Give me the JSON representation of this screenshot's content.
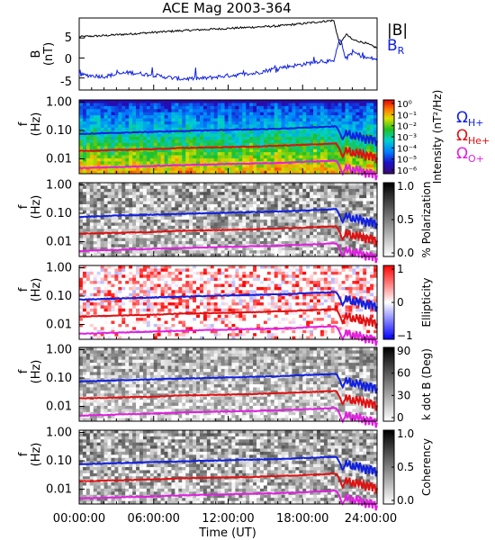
{
  "title": "ACE Mag 2003-364",
  "x_axis": {
    "label": "Time (UT)",
    "ticks": [
      "00:00:00",
      "06:00:00",
      "12:00:00",
      "18:00:00",
      "24:00:00"
    ],
    "range_hours": [
      0,
      24
    ]
  },
  "colors": {
    "H": "#1020e0",
    "He": "#e01010",
    "O": "#e020e0",
    "Btotal": "#000000",
    "BR": "#1020e0"
  },
  "top_panel": {
    "ylabel": "B",
    "yunit": "(nT)",
    "yticks": [
      "5",
      "0",
      "-5"
    ],
    "legend_total": "|B|",
    "legend_r_main": "B",
    "legend_r_sub": "R"
  },
  "panels": [
    {
      "id": "intensity",
      "ylabel": "f",
      "yunit": "(Hz)",
      "colormap": "rainbow",
      "cbar_ticks": [
        "10⁰",
        "10⁻¹",
        "10⁻²",
        "10⁻³",
        "10⁻⁴",
        "10⁻⁵",
        "10⁻⁶"
      ],
      "cbar_label": "Intensity (nT²/Hz)"
    },
    {
      "id": "polarization",
      "ylabel": "f",
      "yunit": "(Hz)",
      "colormap": "gray",
      "cbar_ticks": [
        "1.0",
        "0.5",
        "0.0"
      ],
      "cbar_label": "% Polarization"
    },
    {
      "id": "ellipticity",
      "ylabel": "f",
      "yunit": "(Hz)",
      "colormap": "bluered",
      "cbar_ticks": [
        "1",
        "0",
        "−1"
      ],
      "cbar_label": "Ellipticity"
    },
    {
      "id": "kdotb",
      "ylabel": "f",
      "yunit": "(Hz)",
      "colormap": "gray",
      "cbar_ticks": [
        "90",
        "60",
        "30",
        "0"
      ],
      "cbar_label": "k dot B (Deg)"
    },
    {
      "id": "coherency",
      "ylabel": "f",
      "yunit": "(Hz)",
      "colormap": "gray",
      "cbar_ticks": [
        "1.0",
        "0.5",
        "0.0"
      ],
      "cbar_label": "Coherency"
    }
  ],
  "freq_ticks": [
    "1.00",
    "0.10",
    "0.01"
  ],
  "gyro_legend": {
    "symbol": "Ω",
    "H": "H+",
    "He": "He+",
    "O": "O+"
  },
  "chart_data": [
    {
      "type": "line",
      "title": "ACE Mag 2003-364",
      "xlabel": "Time (UT)",
      "ylabel": "B (nT)",
      "ylim": [
        -8,
        10
      ],
      "x": [
        0,
        2,
        4,
        6,
        8,
        10,
        12,
        14,
        16,
        18,
        19.5,
        20.5,
        21,
        21.5,
        22,
        23,
        24
      ],
      "series": [
        {
          "name": "|B|",
          "values": [
            5.3,
            5.6,
            6.0,
            6.4,
            6.8,
            7.1,
            7.4,
            7.7,
            8.0,
            8.6,
            9.1,
            9.4,
            3.2,
            6.0,
            4.6,
            3.8,
            2.5
          ]
        },
        {
          "name": "B_R",
          "values": [
            -4.2,
            -4.6,
            -3.6,
            -4.3,
            -5.2,
            -5.1,
            -4.4,
            -3.9,
            -2.5,
            -1.6,
            -0.7,
            -1.0,
            4.8,
            -0.2,
            1.6,
            0.1,
            -0.3
          ]
        }
      ]
    },
    {
      "type": "line",
      "description_axes": "gyrofrequency overlays on spectrogram panels",
      "xlabel": "Time (UT)",
      "ylabel": "f (Hz)",
      "yscale": "log",
      "ylim": [
        0.003,
        1.2
      ],
      "x": [
        0,
        2,
        4,
        6,
        8,
        10,
        12,
        14,
        16,
        18,
        20,
        20.7,
        21.2,
        21.6,
        22,
        22.5,
        23,
        23.5,
        24
      ],
      "series": [
        {
          "name": "ΩH+",
          "values": [
            0.075,
            0.08,
            0.085,
            0.09,
            0.095,
            0.1,
            0.105,
            0.11,
            0.115,
            0.125,
            0.135,
            0.14,
            0.045,
            0.09,
            0.06,
            0.07,
            0.05,
            0.055,
            0.04
          ]
        },
        {
          "name": "ΩHe+",
          "values": [
            0.019,
            0.02,
            0.021,
            0.022,
            0.024,
            0.025,
            0.026,
            0.027,
            0.029,
            0.031,
            0.034,
            0.035,
            0.011,
            0.022,
            0.015,
            0.018,
            0.013,
            0.014,
            0.01
          ]
        },
        {
          "name": "ΩO+",
          "values": [
            0.0047,
            0.005,
            0.0053,
            0.0056,
            0.006,
            0.0063,
            0.0066,
            0.0069,
            0.0072,
            0.0078,
            0.0085,
            0.0088,
            0.0028,
            0.0056,
            0.0038,
            0.0045,
            0.0032,
            0.0035,
            0.0025
          ]
        }
      ]
    }
  ]
}
